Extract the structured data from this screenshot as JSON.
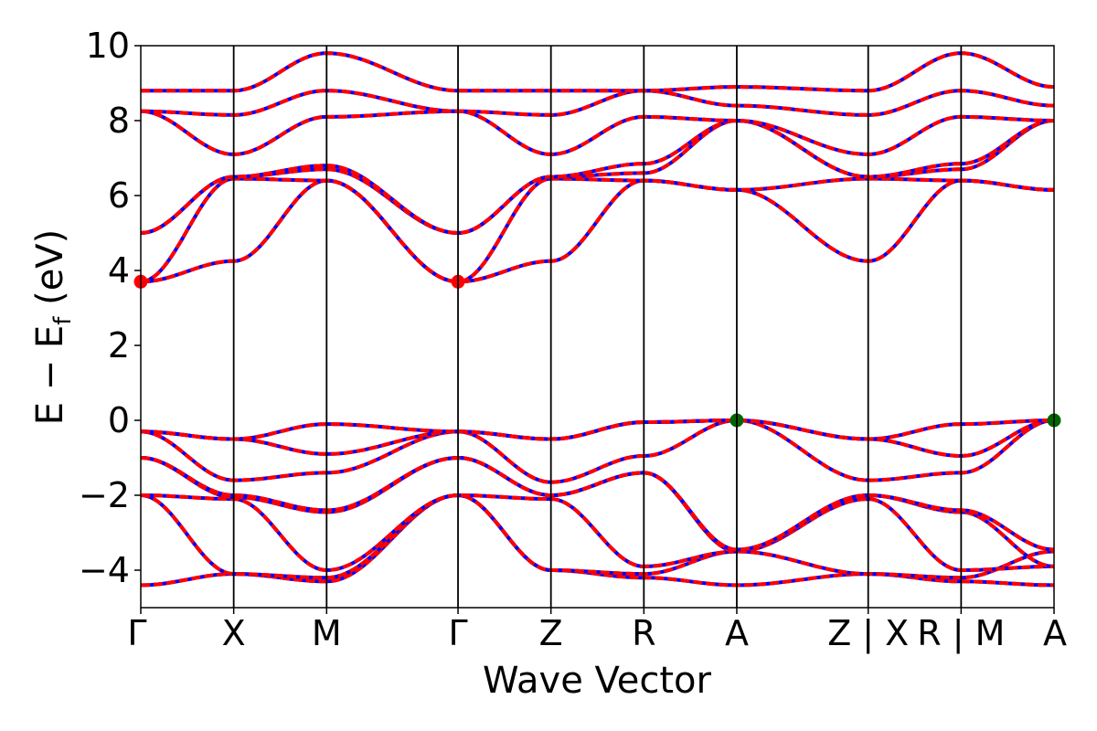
{
  "chart_data": {
    "type": "line",
    "title": "",
    "xlabel": "Wave Vector",
    "ylabel": "E − E_f (eV)",
    "ylabel_parts": {
      "main": "E − E",
      "sub": "f",
      "unit": " (eV)"
    },
    "ylim": [
      -5,
      10
    ],
    "yticks": [
      -4,
      -2,
      0,
      2,
      4,
      6,
      8,
      10
    ],
    "ytick_labels": [
      "−4",
      "−2",
      "0",
      "2",
      "4",
      "6",
      "8",
      "10"
    ],
    "kpath": [
      {
        "label": "Γ",
        "x": 0.0
      },
      {
        "label": "X",
        "x": 1.0
      },
      {
        "label": "M",
        "x": 2.0
      },
      {
        "label": "Γ",
        "x": 3.414
      },
      {
        "label": "Z",
        "x": 4.414
      },
      {
        "label": "R",
        "x": 5.414
      },
      {
        "label": "A",
        "x": 6.414
      },
      {
        "label": "Z | X",
        "x": 7.828
      },
      {
        "label": "R | M",
        "x": 8.828
      },
      {
        "label": "A",
        "x": 9.828
      }
    ],
    "grid": false,
    "legend": "none",
    "colors": {
      "band_solid": "#0000ff",
      "band_dashed": "#ff0000",
      "vbm_marker": "#006400",
      "cbm_marker": "#ff0000"
    },
    "markers": [
      {
        "x": 0.0,
        "y": 3.7,
        "color": "#ff0000"
      },
      {
        "x": 3.414,
        "y": 3.7,
        "color": "#ff0000"
      },
      {
        "x": 6.414,
        "y": 0.0,
        "color": "#006400"
      },
      {
        "x": 9.828,
        "y": 0.0,
        "color": "#006400"
      }
    ],
    "bands": [
      [
        -4.4,
        -4.1,
        -4.3,
        -2.0,
        -4.0,
        -4.2,
        -4.4,
        -4.1,
        -4.3,
        -4.4
      ],
      [
        -2.0,
        -4.1,
        -4.2,
        -2.0,
        -4.0,
        -4.1,
        -3.5,
        -4.1,
        -4.2,
        -3.5
      ],
      [
        -2.0,
        -2.1,
        -4.0,
        -2.0,
        -2.1,
        -3.9,
        -3.5,
        -2.1,
        -4.0,
        -3.9
      ],
      [
        -1.0,
        -2.05,
        -2.45,
        -1.0,
        -2.0,
        -1.4,
        -3.5,
        -2.0,
        -2.45,
        -3.9
      ],
      [
        -1.0,
        -2.0,
        -2.4,
        -1.0,
        -2.0,
        -1.4,
        -3.45,
        -2.0,
        -2.4,
        -3.45
      ],
      [
        -0.3,
        -1.6,
        -1.4,
        -0.3,
        -1.65,
        -0.95,
        0.0,
        -1.6,
        -1.4,
        0.0
      ],
      [
        -0.3,
        -0.5,
        -0.9,
        -0.3,
        -0.5,
        -0.05,
        0.0,
        -0.5,
        -0.95,
        0.0
      ],
      [
        -0.3,
        -0.5,
        -0.1,
        -0.3,
        -0.5,
        -0.05,
        0.0,
        -0.5,
        -0.1,
        0.0
      ],
      [
        3.7,
        4.25,
        6.4,
        3.7,
        4.25,
        6.4,
        6.15,
        4.25,
        6.4,
        6.15
      ],
      [
        3.7,
        6.45,
        6.4,
        3.7,
        6.45,
        6.4,
        6.15,
        6.45,
        6.4,
        6.15
      ],
      [
        5.0,
        6.5,
        6.7,
        5.0,
        6.5,
        6.6,
        8.0,
        6.5,
        6.7,
        8.0
      ],
      [
        5.0,
        6.5,
        6.8,
        5.0,
        6.5,
        6.85,
        8.0,
        6.5,
        6.85,
        8.0
      ],
      [
        8.25,
        7.1,
        8.1,
        8.25,
        7.1,
        8.1,
        8.0,
        7.1,
        8.1,
        8.0
      ],
      [
        8.25,
        8.15,
        8.8,
        8.25,
        8.15,
        8.8,
        8.4,
        8.15,
        8.8,
        8.4
      ],
      [
        8.8,
        8.8,
        9.8,
        8.8,
        8.8,
        8.8,
        8.9,
        8.8,
        9.8,
        8.9
      ]
    ]
  }
}
